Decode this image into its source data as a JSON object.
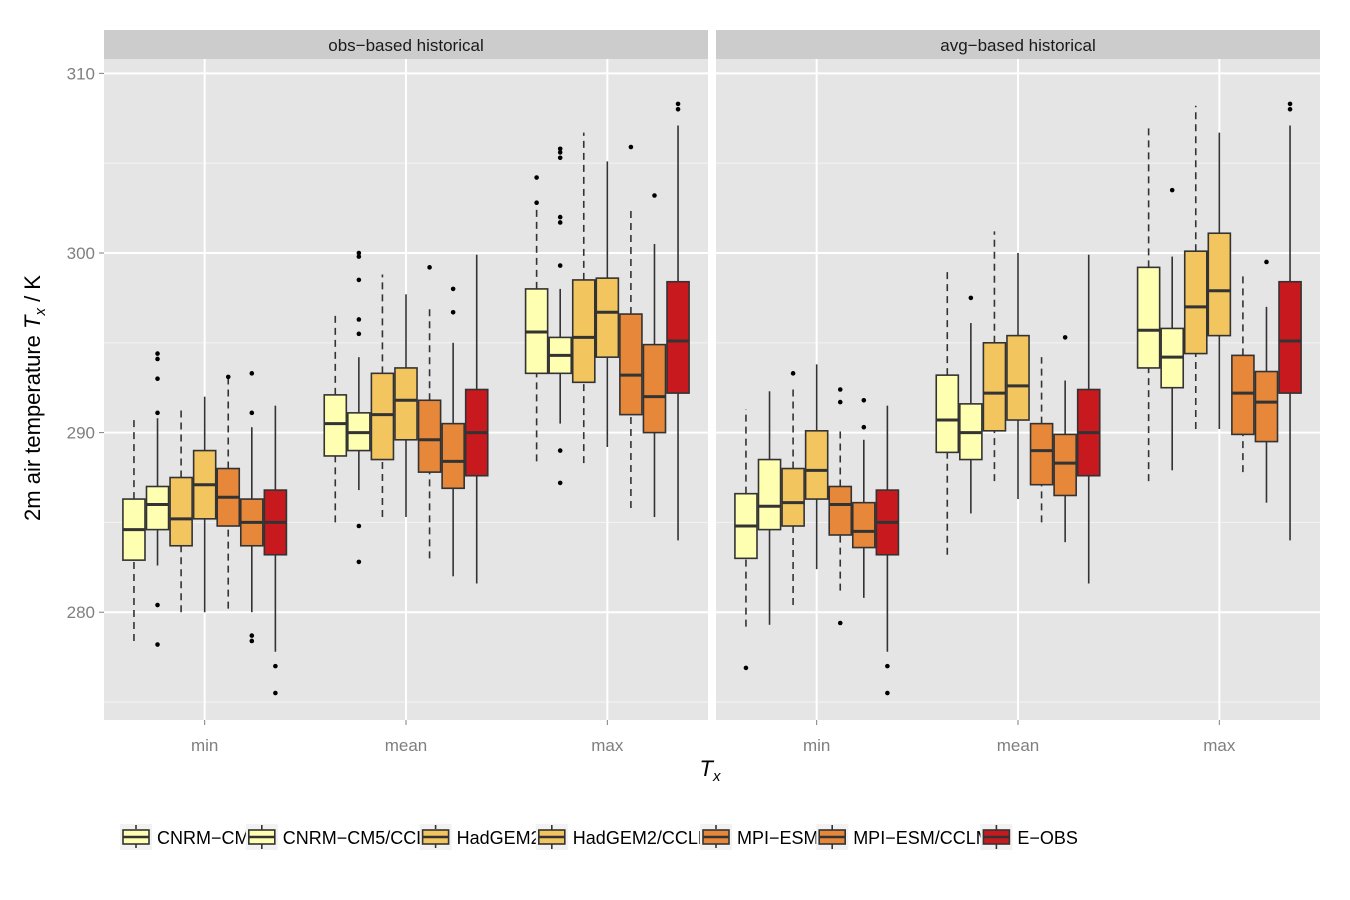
{
  "chart_data": {
    "type": "boxplot",
    "ylabel_prefix": "2m air temperature ",
    "ylabel_var": "T",
    "ylabel_sub": "x",
    "ylabel_suffix": " / K",
    "xlabel_var": "T",
    "xlabel_sub": "x",
    "ylim": [
      274.0,
      310.8
    ],
    "yticks": [
      280,
      290,
      300,
      310
    ],
    "categories": [
      "min",
      "mean",
      "max"
    ],
    "panels": [
      {
        "title": "obs−based historical",
        "groups": [
          {
            "category": "min",
            "boxes": [
              {
                "series": "CNRM−CM5",
                "min": 278.4,
                "q1": 282.9,
                "median": 284.6,
                "q3": 286.3,
                "max": 290.7,
                "outliers": []
              },
              {
                "series": "CNRM−CM5/CCLM",
                "min": 282.6,
                "q1": 284.6,
                "median": 286.0,
                "q3": 287.0,
                "max": 290.8,
                "outliers": [
                  294.4,
                  294.1,
                  293.0,
                  291.1,
                  280.4,
                  278.2
                ]
              },
              {
                "series": "HadGEM2",
                "min": 280.0,
                "q1": 283.7,
                "median": 285.2,
                "q3": 287.5,
                "max": 291.3,
                "outliers": []
              },
              {
                "series": "HadGEM2/CCLM",
                "min": 280.0,
                "q1": 285.2,
                "median": 287.1,
                "q3": 289.0,
                "max": 292.0,
                "outliers": []
              },
              {
                "series": "MPI−ESM",
                "min": 280.2,
                "q1": 284.8,
                "median": 286.4,
                "q3": 288.0,
                "max": 293.3,
                "outliers": [
                  293.1
                ]
              },
              {
                "series": "MPI−ESM/CCLM",
                "min": 280.0,
                "q1": 283.7,
                "median": 285.0,
                "q3": 286.3,
                "max": 290.3,
                "outliers": [
                  293.3,
                  291.1,
                  278.7,
                  278.4
                ]
              },
              {
                "series": "E−OBS",
                "min": 277.8,
                "q1": 283.2,
                "median": 285.0,
                "q3": 286.8,
                "max": 291.5,
                "outliers": [
                  277.0,
                  275.5
                ]
              }
            ]
          },
          {
            "category": "mean",
            "boxes": [
              {
                "series": "CNRM−CM5",
                "min": 285.0,
                "q1": 288.7,
                "median": 290.5,
                "q3": 292.1,
                "max": 296.6,
                "outliers": []
              },
              {
                "series": "CNRM−CM5/CCLM",
                "min": 286.8,
                "q1": 289.0,
                "median": 290.0,
                "q3": 291.1,
                "max": 294.2,
                "outliers": [
                  300.0,
                  299.8,
                  298.5,
                  296.3,
                  295.5,
                  284.8,
                  282.8
                ]
              },
              {
                "series": "HadGEM2",
                "min": 285.3,
                "q1": 288.5,
                "median": 291.0,
                "q3": 293.3,
                "max": 298.8,
                "outliers": []
              },
              {
                "series": "HadGEM2/CCLM",
                "min": 285.3,
                "q1": 289.6,
                "median": 291.8,
                "q3": 293.6,
                "max": 297.7,
                "outliers": []
              },
              {
                "series": "MPI−ESM",
                "min": 283.0,
                "q1": 287.8,
                "median": 289.6,
                "q3": 291.8,
                "max": 297.0,
                "outliers": [
                  299.2
                ]
              },
              {
                "series": "MPI−ESM/CCLM",
                "min": 282.0,
                "q1": 286.9,
                "median": 288.4,
                "q3": 290.5,
                "max": 295.0,
                "outliers": [
                  298.0,
                  296.7
                ]
              },
              {
                "series": "E−OBS",
                "min": 281.6,
                "q1": 287.6,
                "median": 290.0,
                "q3": 292.4,
                "max": 299.9,
                "outliers": []
              }
            ]
          },
          {
            "category": "max",
            "boxes": [
              {
                "series": "CNRM−CM5",
                "min": 288.4,
                "q1": 293.3,
                "median": 295.6,
                "q3": 298.0,
                "max": 302.7,
                "outliers": [
                  304.2,
                  302.8
                ]
              },
              {
                "series": "CNRM−CM5/CCLM",
                "min": 290.5,
                "q1": 293.3,
                "median": 294.3,
                "q3": 295.3,
                "max": 298.0,
                "outliers": [
                  305.8,
                  305.6,
                  305.3,
                  302.0,
                  301.7,
                  299.3,
                  289.0,
                  287.2
                ]
              },
              {
                "series": "HadGEM2",
                "min": 288.3,
                "q1": 292.8,
                "median": 295.3,
                "q3": 298.5,
                "max": 306.7,
                "outliers": []
              },
              {
                "series": "HadGEM2/CCLM",
                "min": 289.2,
                "q1": 294.2,
                "median": 296.7,
                "q3": 298.6,
                "max": 305.1,
                "outliers": []
              },
              {
                "series": "MPI−ESM",
                "min": 285.8,
                "q1": 291.0,
                "median": 293.2,
                "q3": 296.6,
                "max": 302.5,
                "outliers": [
                  305.9
                ]
              },
              {
                "series": "MPI−ESM/CCLM",
                "min": 285.3,
                "q1": 290.0,
                "median": 292.0,
                "q3": 294.9,
                "max": 300.5,
                "outliers": [
                  303.2
                ]
              },
              {
                "series": "E−OBS",
                "min": 284.0,
                "q1": 292.2,
                "median": 295.1,
                "q3": 298.4,
                "max": 307.1,
                "outliers": [
                  308.3,
                  308.0
                ]
              }
            ]
          }
        ]
      },
      {
        "title": "avg−based historical",
        "groups": [
          {
            "category": "min",
            "boxes": [
              {
                "series": "CNRM−CM5",
                "min": 279.2,
                "q1": 283.0,
                "median": 284.8,
                "q3": 286.6,
                "max": 291.3,
                "outliers": [
                  276.9
                ]
              },
              {
                "series": "CNRM−CM5/CCLM",
                "min": 279.3,
                "q1": 284.6,
                "median": 285.9,
                "q3": 288.5,
                "max": 292.3,
                "outliers": []
              },
              {
                "series": "HadGEM2",
                "min": 280.4,
                "q1": 284.8,
                "median": 286.1,
                "q3": 288.0,
                "max": 292.4,
                "outliers": [
                  293.3
                ]
              },
              {
                "series": "HadGEM2/CCLM",
                "min": 282.4,
                "q1": 286.3,
                "median": 287.9,
                "q3": 290.1,
                "max": 293.8,
                "outliers": []
              },
              {
                "series": "MPI−ESM",
                "min": 281.2,
                "q1": 284.3,
                "median": 286.0,
                "q3": 287.0,
                "max": 290.3,
                "outliers": [
                  292.4,
                  291.7,
                  279.4
                ]
              },
              {
                "series": "MPI−ESM/CCLM",
                "min": 280.8,
                "q1": 283.6,
                "median": 284.5,
                "q3": 286.1,
                "max": 289.6,
                "outliers": [
                  291.8,
                  290.3
                ]
              },
              {
                "series": "E−OBS",
                "min": 277.8,
                "q1": 283.2,
                "median": 285.0,
                "q3": 286.8,
                "max": 291.5,
                "outliers": [
                  277.0,
                  275.5
                ]
              }
            ]
          },
          {
            "category": "mean",
            "boxes": [
              {
                "series": "CNRM−CM5",
                "min": 283.2,
                "q1": 288.9,
                "median": 290.7,
                "q3": 293.2,
                "max": 299.0,
                "outliers": []
              },
              {
                "series": "CNRM−CM5/CCLM",
                "min": 285.5,
                "q1": 288.5,
                "median": 290.0,
                "q3": 291.6,
                "max": 296.1,
                "outliers": [
                  297.5
                ]
              },
              {
                "series": "HadGEM2",
                "min": 287.3,
                "q1": 290.1,
                "median": 292.2,
                "q3": 295.0,
                "max": 301.2,
                "outliers": []
              },
              {
                "series": "HadGEM2/CCLM",
                "min": 286.3,
                "q1": 290.7,
                "median": 292.6,
                "q3": 295.4,
                "max": 300.0,
                "outliers": []
              },
              {
                "series": "MPI−ESM",
                "min": 285.0,
                "q1": 287.1,
                "median": 289.0,
                "q3": 290.5,
                "max": 294.2,
                "outliers": []
              },
              {
                "series": "MPI−ESM/CCLM",
                "min": 283.9,
                "q1": 286.5,
                "median": 288.3,
                "q3": 289.9,
                "max": 292.9,
                "outliers": [
                  295.3
                ]
              },
              {
                "series": "E−OBS",
                "min": 281.6,
                "q1": 287.6,
                "median": 290.0,
                "q3": 292.4,
                "max": 299.9,
                "outliers": []
              }
            ]
          },
          {
            "category": "max",
            "boxes": [
              {
                "series": "CNRM−CM5",
                "min": 287.3,
                "q1": 293.6,
                "median": 295.7,
                "q3": 299.2,
                "max": 307.1,
                "outliers": []
              },
              {
                "series": "CNRM−CM5/CCLM",
                "min": 287.9,
                "q1": 292.5,
                "median": 294.2,
                "q3": 295.8,
                "max": 299.8,
                "outliers": [
                  303.5
                ]
              },
              {
                "series": "HadGEM2",
                "min": 290.2,
                "q1": 294.4,
                "median": 297.0,
                "q3": 300.1,
                "max": 308.2,
                "outliers": []
              },
              {
                "series": "HadGEM2/CCLM",
                "min": 290.2,
                "q1": 295.4,
                "median": 297.9,
                "q3": 301.1,
                "max": 306.7,
                "outliers": []
              },
              {
                "series": "MPI−ESM",
                "min": 287.8,
                "q1": 289.9,
                "median": 292.2,
                "q3": 294.3,
                "max": 298.9,
                "outliers": []
              },
              {
                "series": "MPI−ESM/CCLM",
                "min": 286.1,
                "q1": 289.5,
                "median": 291.7,
                "q3": 293.4,
                "max": 297.0,
                "outliers": [
                  299.5
                ]
              },
              {
                "series": "E−OBS",
                "min": 284.0,
                "q1": 292.2,
                "median": 295.1,
                "q3": 298.4,
                "max": 307.1,
                "outliers": [
                  308.3,
                  308.0
                ]
              }
            ]
          }
        ]
      }
    ],
    "series": [
      {
        "name": "CNRM−CM5",
        "color": "#ffffb2",
        "whisker": "dashed"
      },
      {
        "name": "CNRM−CM5/CCLM",
        "color": "#ffffb2",
        "whisker": "solid"
      },
      {
        "name": "HadGEM2",
        "color": "#f2c55e",
        "whisker": "dashed"
      },
      {
        "name": "HadGEM2/CCLM",
        "color": "#f2c55e",
        "whisker": "solid"
      },
      {
        "name": "MPI−ESM",
        "color": "#e6873a",
        "whisker": "dashed"
      },
      {
        "name": "MPI−ESM/CCLM",
        "color": "#e6873a",
        "whisker": "solid"
      },
      {
        "name": "E−OBS",
        "color": "#c8191e",
        "whisker": "solid"
      }
    ],
    "colors": {
      "panel_background": "#e5e5e5",
      "strip_background": "#cccccc",
      "grid_major": "#ffffff",
      "grid_minor": "#f2f2f2",
      "line": "#333333"
    },
    "grid": true,
    "legend_position": "bottom"
  }
}
